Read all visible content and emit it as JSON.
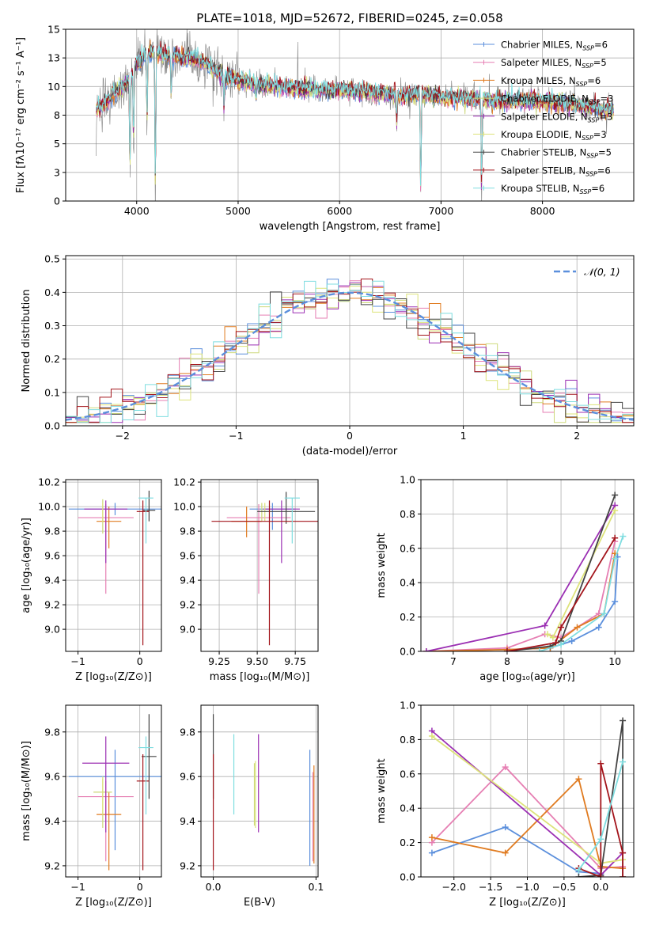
{
  "figure": {
    "title": "PLATE=1018, MJD=52672, FIBERID=0245, z=0.058"
  },
  "colors": {
    "Chabrier MILES": "#5b8fdc",
    "Salpeter MILES": "#e67fb3",
    "Kroupa MILES": "#e07b20",
    "Chabrier ELODIE": "#cdd97b",
    "Salpeter ELODIE": "#9b2fb3",
    "Kroupa ELODIE": "#dde37a",
    "Chabrier STELIB": "#444444",
    "Salpeter STELIB": "#a3141b",
    "Kroupa STELIB": "#7fdde0",
    "data": "#808080",
    "gaussian": "#5b8fdc"
  },
  "chart_data": [
    {
      "id": "spectrum",
      "type": "line",
      "title": "PLATE=1018, MJD=52672, FIBERID=0245, z=0.058",
      "xlabel": "wavelength [Angstrom, rest frame]",
      "ylabel": "Flux [fλ10⁻¹⁷ erg cm⁻² s⁻¹ A⁻¹]",
      "xlim": [
        3300,
        8900
      ],
      "ylim": [
        0,
        15
      ],
      "xticks": [
        4000,
        5000,
        6000,
        7000,
        8000
      ],
      "yticks": [
        0.0,
        2.5,
        5.0,
        7.5,
        10.0,
        12.5,
        15.0
      ],
      "legend_position": "top-right",
      "legend": [
        {
          "name": "Chabrier MILES",
          "nssp": "6"
        },
        {
          "name": "Salpeter MILES",
          "nssp": "5"
        },
        {
          "name": "Kroupa MILES",
          "nssp": "6"
        },
        {
          "name": "Chabrier ELODIE",
          "nssp": "3"
        },
        {
          "name": "Salpeter ELODIE",
          "nssp": "3"
        },
        {
          "name": "Kroupa ELODIE",
          "nssp": "3"
        },
        {
          "name": "Chabrier STELIB",
          "nssp": "5"
        },
        {
          "name": "Salpeter STELIB",
          "nssp": "6"
        },
        {
          "name": "Kroupa STELIB",
          "nssp": "6"
        }
      ],
      "continuum": {
        "x": [
          3600,
          3700,
          3800,
          3900,
          4000,
          4100,
          4200,
          4300,
          4400,
          4500,
          4600,
          4700,
          4800,
          4900,
          5000,
          5200,
          5400,
          5600,
          5800,
          6000,
          6200,
          6400,
          6600,
          6800,
          7000,
          7200,
          7400,
          7600,
          7800,
          8000,
          8200,
          8400,
          8600,
          8700
        ],
        "y": [
          7.9,
          8.7,
          9.6,
          10.3,
          12.0,
          12.9,
          13.0,
          12.7,
          12.6,
          12.5,
          12.3,
          11.9,
          11.2,
          10.8,
          10.5,
          10.2,
          10.0,
          9.8,
          9.7,
          9.7,
          9.6,
          9.4,
          9.2,
          9.3,
          9.1,
          9.0,
          8.9,
          8.7,
          8.8,
          8.7,
          8.6,
          8.3,
          8.0,
          7.9
        ]
      },
      "absorption": [
        {
          "x": 3934,
          "y": 2.0
        },
        {
          "x": 3969,
          "y": 4.5
        },
        {
          "x": 4102,
          "y": 6.5
        },
        {
          "x": 4184,
          "y": 0.0
        },
        {
          "x": 4340,
          "y": 8.5
        },
        {
          "x": 4861,
          "y": 8.0
        },
        {
          "x": 5176,
          "y": 8.8
        },
        {
          "x": 6563,
          "y": 6.5
        },
        {
          "x": 6800,
          "y": 0.0
        },
        {
          "x": 7400,
          "y": 0.0
        }
      ]
    },
    {
      "id": "residuals",
      "type": "line",
      "xlabel": "(data-model)/error",
      "ylabel": "Normed distribution",
      "xlim": [
        -2.5,
        2.5
      ],
      "ylim": [
        0,
        0.51
      ],
      "xticks": [
        -2,
        -1,
        0,
        1,
        2
      ],
      "yticks": [
        0.0,
        0.1,
        0.2,
        0.3,
        0.4,
        0.5
      ],
      "bin_width": 0.1,
      "legend_position": "top-right",
      "legend": [
        {
          "name": "𝒩(0, 1)"
        }
      ],
      "gaussian": {
        "mean": 0,
        "sigma": 1
      }
    },
    {
      "id": "age-vs-Z",
      "type": "scatter",
      "xlabel": "Z [log₁₀(Z/Z⊙)]",
      "ylabel": "age  [log₁₀(age/yr)]",
      "xlim": [
        -1.2,
        0.35
      ],
      "ylim": [
        8.82,
        10.22
      ],
      "xticks": [
        -1,
        0
      ],
      "yticks": [
        9.0,
        9.2,
        9.4,
        9.6,
        9.8,
        10.0,
        10.2
      ],
      "points": [
        {
          "model": "Chabrier MILES",
          "x": -0.4,
          "xerr": 0.75,
          "y": 9.98,
          "yerr": [
            0.05,
            0.05
          ]
        },
        {
          "model": "Salpeter MILES",
          "x": -0.55,
          "xerr": 0.45,
          "y": 9.91,
          "yerr": [
            0.62,
            0.11
          ]
        },
        {
          "model": "Kroupa MILES",
          "x": -0.5,
          "xerr": 0.2,
          "y": 9.88,
          "yerr": [
            0.22,
            0.12
          ]
        },
        {
          "model": "Chabrier ELODIE",
          "x": -0.6,
          "xerr": 0.0,
          "y": 9.98,
          "yerr": [
            0.2,
            0.08
          ]
        },
        {
          "model": "Salpeter ELODIE",
          "x": -0.55,
          "xerr": 0.35,
          "y": 9.98,
          "yerr": [
            0.44,
            0.07
          ]
        },
        {
          "model": "Kroupa ELODIE",
          "x": -0.6,
          "xerr": 0.0,
          "y": 9.98,
          "yerr": [
            0.1,
            0.05
          ]
        },
        {
          "model": "Chabrier STELIB",
          "x": 0.15,
          "xerr": 0.1,
          "y": 9.97,
          "yerr": [
            0.09,
            0.16
          ]
        },
        {
          "model": "Salpeter STELIB",
          "x": 0.05,
          "xerr": 0.1,
          "y": 9.96,
          "yerr": [
            1.09,
            0.09
          ]
        },
        {
          "model": "Kroupa STELIB",
          "x": 0.1,
          "xerr": 0.12,
          "y": 10.07,
          "yerr": [
            0.37,
            0.0
          ]
        }
      ]
    },
    {
      "id": "age-vs-mass",
      "type": "scatter",
      "xlabel": "mass [log₁₀(M/M⊙)]",
      "ylabel": "",
      "xlim": [
        9.13,
        9.9
      ],
      "ylim": [
        8.82,
        10.22
      ],
      "xticks": [
        9.25,
        9.5,
        9.75
      ],
      "yticks": [
        9.0,
        9.2,
        9.4,
        9.6,
        9.8,
        10.0,
        10.2
      ],
      "points": [
        {
          "model": "Chabrier MILES",
          "x": 9.6,
          "xerr": 0.15,
          "y": 9.98,
          "yerr": [
            0.17,
            0.05
          ]
        },
        {
          "model": "Salpeter MILES",
          "x": 9.51,
          "xerr": 0.21,
          "y": 9.91,
          "yerr": [
            0.62,
            0.11
          ]
        },
        {
          "model": "Kroupa MILES",
          "x": 9.43,
          "xerr": 0.1,
          "y": 9.88,
          "yerr": [
            0.13,
            0.12
          ]
        },
        {
          "model": "Chabrier ELODIE",
          "x": 9.53,
          "xerr": 0.0,
          "y": 9.98,
          "yerr": [
            0.1,
            0.05
          ]
        },
        {
          "model": "Salpeter ELODIE",
          "x": 9.66,
          "xerr": 0.12,
          "y": 9.98,
          "yerr": [
            0.44,
            0.07
          ]
        },
        {
          "model": "Kroupa ELODIE",
          "x": 9.55,
          "xerr": 0.0,
          "y": 9.98,
          "yerr": [
            0.1,
            0.05
          ]
        },
        {
          "model": "Chabrier STELIB",
          "x": 9.69,
          "xerr": 0.19,
          "y": 9.96,
          "yerr": [
            0.1,
            0.16
          ]
        },
        {
          "model": "Salpeter STELIB",
          "x": 9.58,
          "xerr": 0.38,
          "y": 9.88,
          "yerr": [
            1.01,
            0.17
          ]
        },
        {
          "model": "Kroupa STELIB",
          "x": 9.73,
          "xerr": 0.05,
          "y": 10.07,
          "yerr": [
            0.37,
            0.0
          ]
        }
      ]
    },
    {
      "id": "weight-vs-age",
      "type": "line",
      "xlabel": "age  [log₁₀(age/yr)]",
      "ylabel": "mass weight",
      "xlim": [
        6.4,
        10.35
      ],
      "ylim": [
        0,
        1.0
      ],
      "xticks": [
        7,
        8,
        9,
        10
      ],
      "yticks": [
        0.0,
        0.2,
        0.4,
        0.6,
        0.8,
        1.0
      ],
      "series": [
        {
          "model": "Chabrier MILES",
          "x": [
            6.5,
            8.0,
            8.8,
            9.2,
            9.7,
            10.0,
            10.05
          ],
          "y": [
            0.0,
            0.01,
            0.02,
            0.06,
            0.14,
            0.29,
            0.55
          ]
        },
        {
          "model": "Salpeter MILES",
          "x": [
            6.5,
            8.0,
            8.7,
            9.0,
            9.7,
            10.0
          ],
          "y": [
            0.0,
            0.02,
            0.1,
            0.08,
            0.22,
            0.64
          ]
        },
        {
          "model": "Kroupa MILES",
          "x": [
            6.5,
            8.0,
            8.8,
            9.3,
            9.8,
            10.0
          ],
          "y": [
            0.0,
            0.01,
            0.02,
            0.14,
            0.22,
            0.57
          ]
        },
        {
          "model": "Salpeter ELODIE",
          "x": [
            6.5,
            8.7,
            10.0
          ],
          "y": [
            0.0,
            0.15,
            0.85
          ]
        },
        {
          "model": "Kroupa ELODIE",
          "x": [
            8.75,
            8.85,
            10.0
          ],
          "y": [
            0.1,
            0.08,
            0.82
          ]
        },
        {
          "model": "Chabrier STELIB",
          "x": [
            8.0,
            8.8,
            9.0,
            10.0
          ],
          "y": [
            0.0,
            0.03,
            0.06,
            0.91
          ]
        },
        {
          "model": "Salpeter STELIB",
          "x": [
            8.0,
            8.9,
            9.0,
            10.0
          ],
          "y": [
            0.0,
            0.05,
            0.14,
            0.66
          ]
        },
        {
          "model": "Kroupa STELIB",
          "x": [
            8.6,
            9.0,
            9.8,
            10.0,
            10.15
          ],
          "y": [
            0.0,
            0.04,
            0.22,
            0.54,
            0.67
          ]
        }
      ]
    },
    {
      "id": "mass-vs-Z",
      "type": "scatter",
      "xlabel": "Z [log₁₀(Z/Z⊙)]",
      "ylabel": "mass [log₁₀(M/M⊙)]",
      "xlim": [
        -1.2,
        0.35
      ],
      "ylim": [
        9.15,
        9.92
      ],
      "xticks": [
        -1,
        0
      ],
      "yticks": [
        9.2,
        9.4,
        9.6,
        9.8
      ],
      "points": [
        {
          "model": "Chabrier MILES",
          "x": -0.4,
          "xerr": 0.75,
          "y": 9.6,
          "yerr": [
            0.33,
            0.12
          ]
        },
        {
          "model": "Salpeter MILES",
          "x": -0.55,
          "xerr": 0.45,
          "y": 9.51,
          "yerr": [
            0.29,
            0.07
          ]
        },
        {
          "model": "Kroupa MILES",
          "x": -0.5,
          "xerr": 0.2,
          "y": 9.43,
          "yerr": [
            0.25,
            0.1
          ]
        },
        {
          "model": "Chabrier ELODIE",
          "x": -0.6,
          "xerr": 0.15,
          "y": 9.53,
          "yerr": [
            0.16,
            0.06
          ]
        },
        {
          "model": "Salpeter ELODIE",
          "x": -0.55,
          "xerr": 0.38,
          "y": 9.66,
          "yerr": [
            0.31,
            0.12
          ]
        },
        {
          "model": "Kroupa ELODIE",
          "x": -0.6,
          "xerr": 0.0,
          "y": 9.55,
          "yerr": [
            0.12,
            0.05
          ]
        },
        {
          "model": "Chabrier STELIB",
          "x": 0.15,
          "xerr": 0.12,
          "y": 9.69,
          "yerr": [
            0.19,
            0.19
          ]
        },
        {
          "model": "Salpeter STELIB",
          "x": 0.05,
          "xerr": 0.1,
          "y": 9.58,
          "yerr": [
            0.4,
            0.12
          ]
        },
        {
          "model": "Kroupa STELIB",
          "x": 0.1,
          "xerr": 0.12,
          "y": 9.73,
          "yerr": [
            0.3,
            0.05
          ]
        }
      ]
    },
    {
      "id": "mass-vs-EBV",
      "type": "scatter",
      "xlabel": "E(B-V)",
      "ylabel": "",
      "xlim": [
        -0.012,
        0.102
      ],
      "ylim": [
        9.15,
        9.92
      ],
      "xticks": [
        0.0,
        0.1
      ],
      "yticks": [
        9.2,
        9.4,
        9.6,
        9.8
      ],
      "points": [
        {
          "model": "Chabrier STELIB",
          "x": 0.0,
          "y": 9.69,
          "yerr": [
            0.19,
            0.19
          ]
        },
        {
          "model": "Salpeter STELIB",
          "x": 0.0,
          "y": 9.58,
          "yerr": [
            0.4,
            0.12
          ]
        },
        {
          "model": "Kroupa STELIB",
          "x": 0.02,
          "y": 9.61,
          "yerr": [
            0.18,
            0.18
          ]
        },
        {
          "model": "Chabrier ELODIE",
          "x": 0.04,
          "y": 9.5,
          "yerr": [
            0.12,
            0.16
          ]
        },
        {
          "model": "Kroupa ELODIE",
          "x": 0.041,
          "y": 9.52,
          "yerr": [
            0.15,
            0.15
          ]
        },
        {
          "model": "Salpeter ELODIE",
          "x": 0.044,
          "y": 9.57,
          "yerr": [
            0.22,
            0.22
          ]
        },
        {
          "model": "Chabrier MILES",
          "x": 0.094,
          "y": 9.51,
          "yerr": [
            0.31,
            0.21
          ]
        },
        {
          "model": "Salpeter MILES",
          "x": 0.097,
          "y": 9.42,
          "yerr": [
            0.2,
            0.2
          ]
        },
        {
          "model": "Kroupa MILES",
          "x": 0.098,
          "y": 9.43,
          "yerr": [
            0.22,
            0.22
          ]
        }
      ]
    },
    {
      "id": "weight-vs-Z",
      "type": "line",
      "xlabel": "Z [log₁₀(Z/Z⊙)]",
      "ylabel": "mass weight",
      "xlim": [
        -2.45,
        0.45
      ],
      "ylim": [
        0,
        1.0
      ],
      "xticks": [
        -2.0,
        -1.5,
        -1.0,
        -0.5,
        0.0
      ],
      "yticks": [
        0.0,
        0.2,
        0.4,
        0.6,
        0.8,
        1.0
      ],
      "series": [
        {
          "model": "Chabrier MILES",
          "x": [
            -2.3,
            -1.3,
            -0.3,
            0.0
          ],
          "y": [
            0.14,
            0.29,
            0.03,
            0.02
          ]
        },
        {
          "model": "Salpeter MILES",
          "x": [
            -2.3,
            -1.3,
            0.0,
            0.3
          ],
          "y": [
            0.2,
            0.64,
            0.05,
            0.06
          ]
        },
        {
          "model": "Kroupa MILES",
          "x": [
            -2.3,
            -1.3,
            -0.3,
            0.0,
            0.3
          ],
          "y": [
            0.23,
            0.14,
            0.57,
            0.06,
            0.05
          ]
        },
        {
          "model": "Salpeter ELODIE",
          "x": [
            -2.3,
            0.0,
            0.3
          ],
          "y": [
            0.85,
            0.01,
            0.14
          ]
        },
        {
          "model": "Kroupa ELODIE",
          "x": [
            -2.3,
            0.0,
            0.3
          ],
          "y": [
            0.82,
            0.08,
            0.1
          ]
        },
        {
          "model": "Chabrier STELIB",
          "x": [
            -0.3,
            0.0,
            0.3,
            0.3
          ],
          "y": [
            0.0,
            0.01,
            0.91,
            0.0
          ]
        },
        {
          "model": "Salpeter STELIB",
          "x": [
            -0.3,
            0.0,
            0.0,
            0.3,
            0.3
          ],
          "y": [
            0.05,
            0.0,
            0.66,
            0.14,
            0.0
          ]
        },
        {
          "model": "Kroupa STELIB",
          "x": [
            -0.3,
            0.0,
            0.3
          ],
          "y": [
            0.04,
            0.22,
            0.67
          ]
        }
      ]
    }
  ]
}
